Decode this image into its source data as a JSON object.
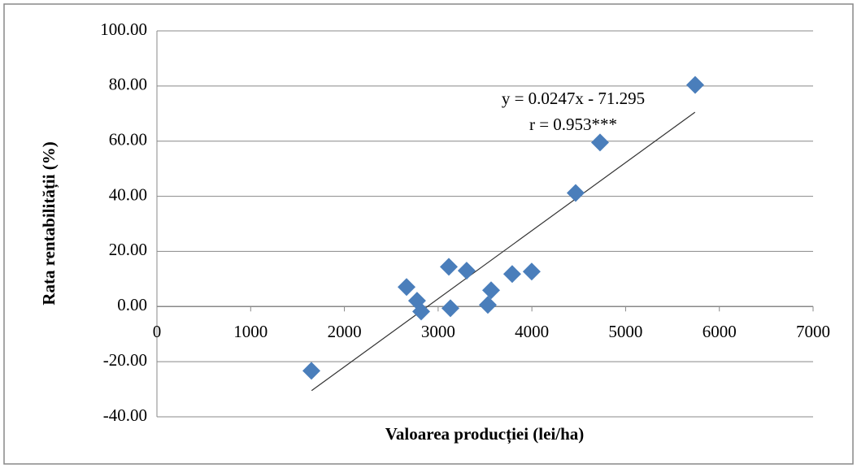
{
  "chart_data": {
    "type": "scatter",
    "x_label": "Valoarea producției  (lei/ha)",
    "y_label": "Rata rentabilității  (%)",
    "annotations": [
      "y = 0.0247x - 71.295",
      "r = 0.953***"
    ],
    "x": [
      1648,
      2663,
      2775,
      2819,
      3114,
      3131,
      3304,
      3530,
      3565,
      3790,
      3998,
      4467,
      4727,
      5742
    ],
    "values": [
      -23.3,
      7.1,
      2.1,
      -1.8,
      14.4,
      -0.6,
      13.0,
      0.6,
      5.9,
      11.8,
      12.7,
      41.2,
      59.5,
      80.4
    ],
    "color": "#4a7ebb",
    "trendline": {
      "x": [
        1650,
        5740
      ],
      "values": [
        -30.5,
        70.5
      ],
      "color": "#333333"
    },
    "xlim": [
      0,
      7000
    ],
    "xticks": [
      0,
      1000,
      2000,
      3000,
      4000,
      5000,
      6000,
      7000
    ],
    "ylim": [
      -40,
      100
    ],
    "yticks": [
      {
        "value": -40,
        "label": "-40.00"
      },
      {
        "value": -20,
        "label": "-20.00"
      },
      {
        "value": 0,
        "label": "0.00"
      },
      {
        "value": 20,
        "label": "20.00"
      },
      {
        "value": 40,
        "label": "40.00"
      },
      {
        "value": 60,
        "label": "60.00"
      },
      {
        "value": 80,
        "label": "80.00"
      },
      {
        "value": 100,
        "label": "100.00"
      }
    ],
    "grid": true
  }
}
